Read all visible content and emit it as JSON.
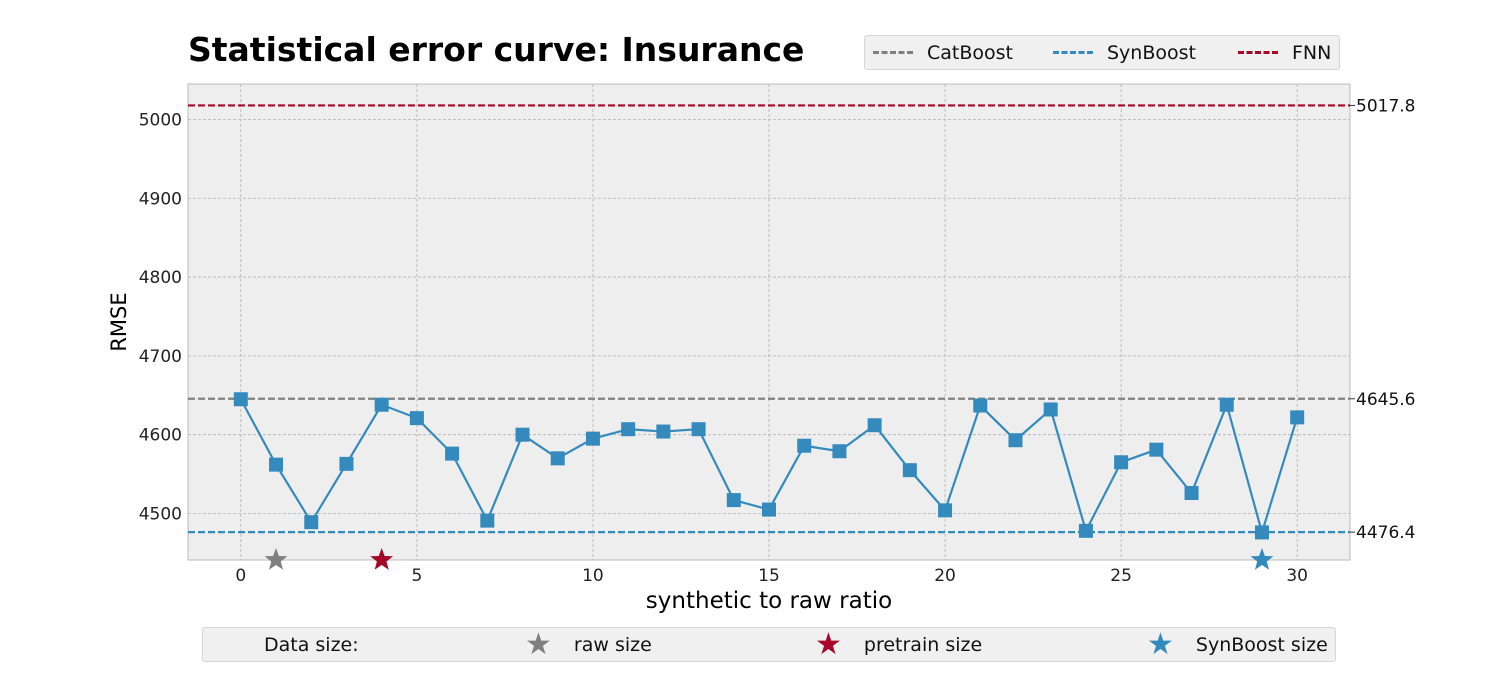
{
  "chart_data": {
    "type": "line",
    "title": "Statistical error curve: Insurance",
    "xlabel": "synthetic to raw ratio",
    "ylabel": "RMSE",
    "xlim": [
      -1.5,
      31.5
    ],
    "ylim": [
      4441,
      5045
    ],
    "xticks": [
      0,
      5,
      10,
      15,
      20,
      25,
      30
    ],
    "yticks": [
      4500,
      4600,
      4700,
      4800,
      4900,
      5000
    ],
    "grid": true,
    "x": [
      0,
      1,
      2,
      3,
      4,
      5,
      6,
      7,
      8,
      9,
      10,
      11,
      12,
      13,
      14,
      15,
      16,
      17,
      18,
      19,
      20,
      21,
      22,
      23,
      24,
      25,
      26,
      27,
      28,
      29,
      30
    ],
    "series": [
      {
        "values": [
          4645,
          4562,
          4489,
          4563,
          4638,
          4621,
          4576,
          4491,
          4600,
          4570,
          4595,
          4607,
          4604,
          4607,
          4517,
          4505,
          4586,
          4579,
          4612,
          4555,
          4504,
          4637,
          4593,
          4632,
          4478,
          4565,
          4581,
          4526,
          4638,
          4476,
          4622
        ],
        "color": "#348abd",
        "marker": "square"
      }
    ],
    "reference_lines": [
      {
        "name": "CatBoost",
        "value": 4645.6,
        "label": "4645.6",
        "color": "#808080"
      },
      {
        "name": "SynBoost",
        "value": 4476.4,
        "label": "4476.4",
        "color": "#348abd"
      },
      {
        "name": "FNN",
        "value": 5017.8,
        "label": "5017.8",
        "color": "#a60628"
      }
    ],
    "size_markers": [
      {
        "name": "raw size",
        "x": 1,
        "color": "#808080"
      },
      {
        "name": "pretrain size",
        "x": 4,
        "color": "#a60628"
      },
      {
        "name": "SynBoost size",
        "x": 29,
        "color": "#348abd"
      }
    ],
    "bottom_legend_title": "Data size:",
    "legend_position": "top-right"
  }
}
